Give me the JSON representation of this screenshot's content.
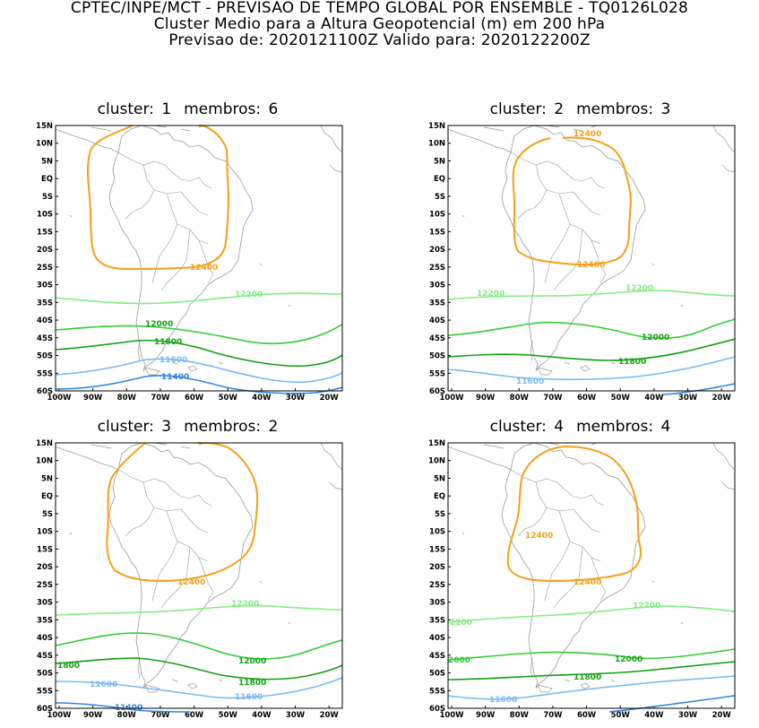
{
  "header": {
    "line1": "CPTEC/INPE/MCT - PREVISAO DE TEMPO GLOBAL POR ENSEMBLE - TQ0126L028",
    "line2": "Cluster Medio para a Altura Geopotencial (m) em 200 hPa",
    "line3": "Previsao de: 2020121100Z    Valido para: 2020122200Z"
  },
  "axes": {
    "lat_labels": [
      "15N",
      "10N",
      "5N",
      "EQ",
      "5S",
      "10S",
      "15S",
      "20S",
      "25S",
      "30S",
      "35S",
      "40S",
      "45S",
      "50S",
      "55S",
      "60S"
    ],
    "lon_labels": [
      "100W",
      "90W",
      "80W",
      "70W",
      "60W",
      "50W",
      "40W",
      "30W",
      "20W"
    ]
  },
  "colors": {
    "c12400": "#f5a01a",
    "c12200": "#80ee80",
    "c12000": "#33cc33",
    "c11800": "#12a012",
    "c11600": "#7ab8f5",
    "c11400": "#2f86e0",
    "coast": "#9a9a9a"
  },
  "panels": [
    {
      "title_cluster": "cluster: 1",
      "title_members": "membros: 6",
      "labels": {
        "l12400": "12400",
        "l12200": "12200",
        "l12000": "12000",
        "l11800": "11800",
        "l11600": "11600",
        "l11400": "11400"
      }
    },
    {
      "title_cluster": "cluster: 2",
      "title_members": "membros: 3",
      "labels": {
        "l12400a": "12400",
        "l12400b": "12400",
        "l12200a": "12200",
        "l12200b": "12200",
        "l12000": "12000",
        "l11800": "11800",
        "l11600": "11600"
      }
    },
    {
      "title_cluster": "cluster: 3",
      "title_members": "membros: 2",
      "labels": {
        "l12400": "12400",
        "l12200": "12200",
        "l12000": "12000",
        "l11800a": "1800",
        "l11800b": "11800",
        "l11600a": "11600",
        "l11600b": "11600",
        "l11400": "11400"
      }
    },
    {
      "title_cluster": "cluster: 4",
      "title_members": "membros: 4",
      "labels": {
        "l12400a": "12400",
        "l12400b": "12400",
        "l12200a": "2200",
        "l12200b": "12200",
        "l12000a": "2000",
        "l12000b": "12000",
        "l11800": "11800",
        "l11600": "11600"
      }
    }
  ]
}
